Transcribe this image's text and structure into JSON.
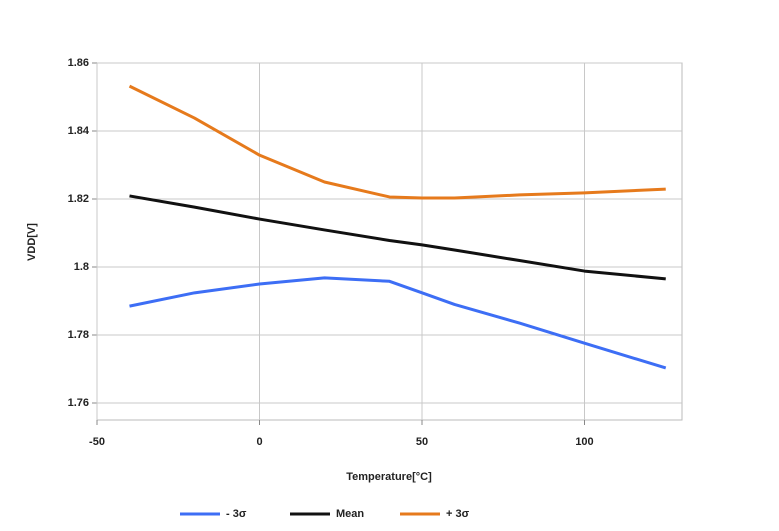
{
  "chart_data": {
    "type": "line",
    "xlabel": "Temperature[°C]",
    "ylabel": "VDD[V]",
    "x": [
      -40,
      -20,
      0,
      20,
      40,
      50,
      60,
      80,
      100,
      125
    ],
    "series": [
      {
        "name": "- 3σ",
        "color": "#3d6ef5",
        "values": [
          1.7885,
          1.7924,
          1.795,
          1.7968,
          1.7958,
          1.7924,
          1.789,
          1.7835,
          1.7776,
          1.7703
        ]
      },
      {
        "name": "Mean",
        "color": "#111111",
        "values": [
          1.8209,
          1.8176,
          1.8141,
          1.8109,
          1.8078,
          1.8065,
          1.805,
          1.8019,
          1.7988,
          1.7965
        ]
      },
      {
        "name": "+ 3σ",
        "color": "#e67a1c",
        "values": [
          1.8532,
          1.8438,
          1.8329,
          1.825,
          1.8206,
          1.8203,
          1.8203,
          1.8212,
          1.8218,
          1.8229
        ]
      }
    ],
    "xlim": [
      -50,
      130
    ],
    "xticks": [
      -50,
      0,
      50,
      100
    ],
    "ylim": [
      1.755,
      1.86
    ],
    "yticks": [
      1.76,
      1.78,
      1.8,
      1.82,
      1.84,
      1.86
    ],
    "grid": true,
    "legend": "bottom"
  }
}
